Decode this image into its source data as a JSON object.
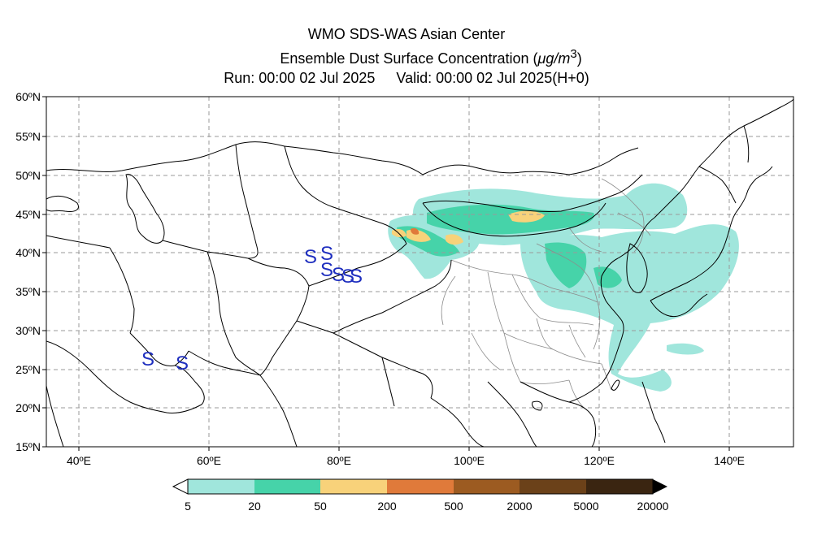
{
  "header": {
    "title_line1": "WMO SDS-WAS Asian Center",
    "title_line2_prefix": "Ensemble Dust Surface Concentration (",
    "title_line2_unit": "μg/m",
    "title_line2_sup": "3",
    "title_line2_suffix": ")",
    "run_label": "Run: 00:00 02 Jul 2025",
    "valid_label": "Valid: 00:00 02 Jul 2025(H+0)"
  },
  "map": {
    "lat_labels": [
      "60ºN",
      "55ºN",
      "50ºN",
      "45ºN",
      "40ºN",
      "35ºN",
      "30ºN",
      "25ºN",
      "20ºN",
      "15ºN"
    ],
    "lon_labels": [
      "40ºE",
      "60ºE",
      "80ºE",
      "100ºE",
      "120ºE",
      "140ºE"
    ],
    "lat_values": [
      60,
      55,
      50,
      45,
      40,
      35,
      30,
      25,
      20,
      15
    ],
    "lon_values": [
      40,
      60,
      80,
      100,
      120,
      140
    ],
    "extent": {
      "lon_min": 35,
      "lon_max": 150,
      "lat_min": 15,
      "lat_max": 60
    },
    "station_symbol": "S",
    "station_color": "#1f2fbf"
  },
  "legend": {
    "ticks": [
      "5",
      "20",
      "50",
      "200",
      "500",
      "2000",
      "5000",
      "20000"
    ],
    "colors": [
      "#a0e6dc",
      "#46d3a9",
      "#f8d27a",
      "#e07a3a",
      "#9c5b21",
      "#6b4119",
      "#3a2511"
    ]
  }
}
